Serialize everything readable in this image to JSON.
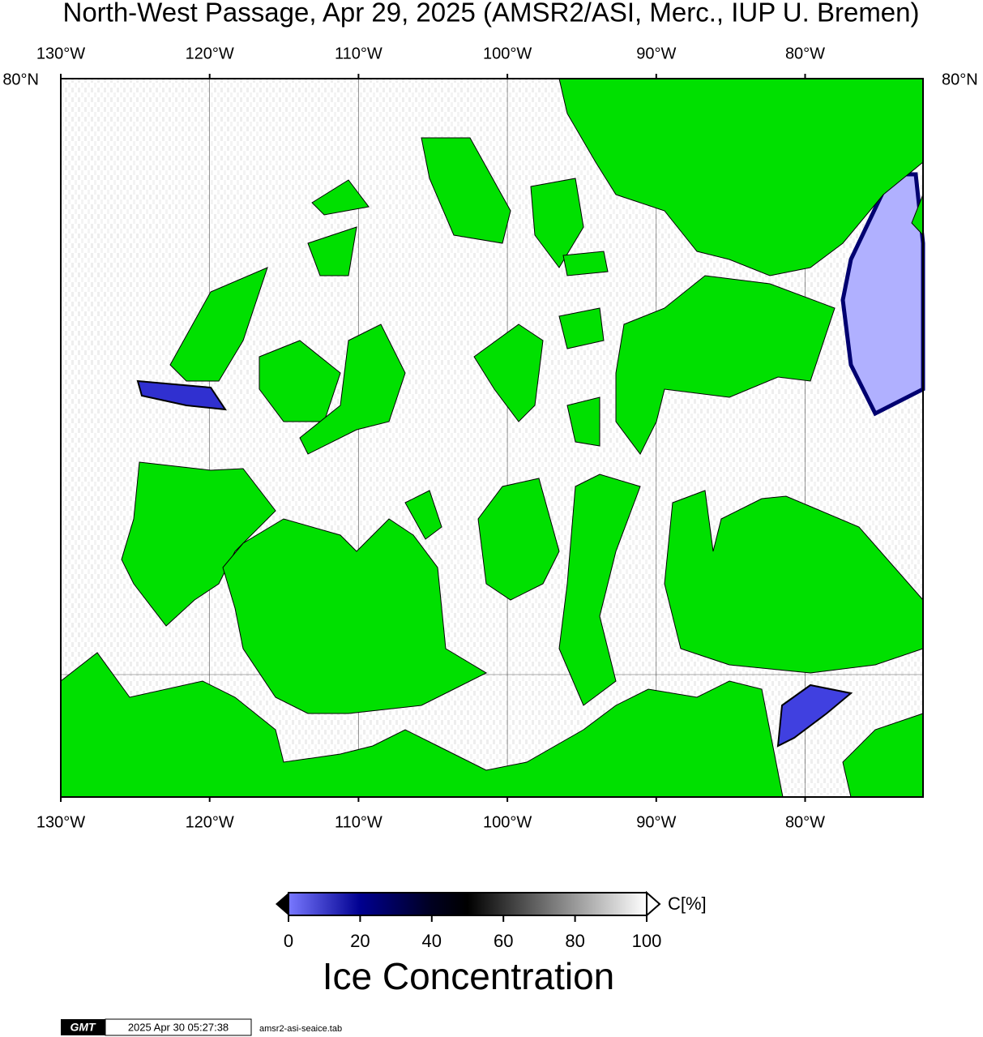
{
  "title": "North-West Passage, Apr 29, 2025 (AMSR2/ASI, Merc., IUP U. Bremen)",
  "map": {
    "lon_labels": [
      "130°W",
      "120°W",
      "110°W",
      "100°W",
      "90°W",
      "80°W"
    ],
    "lat_label": "80°N"
  },
  "colorbar": {
    "ticks": [
      0,
      20,
      40,
      60,
      80,
      100
    ],
    "unit": "C[%]",
    "title": "Ice Concentration"
  },
  "footer": {
    "logo": "GMT",
    "timestamp": "2025 Apr 30 05:27:38",
    "file": "amsr2-asi-seaice.tab"
  }
}
